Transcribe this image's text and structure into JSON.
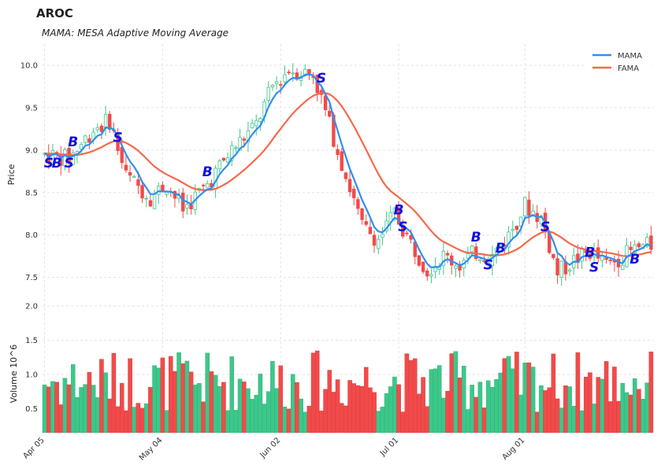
{
  "title": "AROC",
  "subtitle": "MAMA: MESA Adaptive Moving Average",
  "chart_data": {
    "type": "candlestick",
    "price_panel": {
      "ylabel": "Price",
      "ylim": [
        7.2,
        10.25
      ],
      "yticks": [
        7.5,
        8.0,
        8.5,
        9.0,
        9.5,
        10.0
      ],
      "ytick_labels": [
        "7.5",
        "8.0",
        "8.5",
        "9.0",
        "9.5",
        "10.0"
      ],
      "grid": true,
      "legend_position": "top-right",
      "series": [
        {
          "name": "MAMA",
          "color": "#2f8ff0",
          "x": [
            0,
            3,
            5,
            8,
            11,
            14,
            17,
            20,
            23,
            26,
            29,
            32,
            35,
            38,
            41,
            44,
            47,
            50,
            53,
            56,
            59,
            62,
            65,
            68,
            71,
            74,
            77,
            80,
            83,
            86,
            89,
            92,
            95,
            98,
            101,
            104,
            107,
            110,
            113,
            116,
            119,
            122,
            125,
            128,
            131,
            134,
            137,
            140,
            143,
            146,
            149,
            152,
            155,
            158,
            161,
            164,
            167,
            170,
            173,
            176,
            179,
            182,
            185,
            188,
            191,
            194,
            197,
            200,
            203,
            206,
            209,
            212,
            215,
            218,
            221,
            224,
            227,
            230,
            233,
            236,
            239,
            242,
            245,
            248,
            251,
            254,
            257,
            260,
            263,
            266,
            269,
            272,
            275,
            278,
            281,
            284,
            287,
            290,
            293,
            296,
            299,
            302,
            305,
            308,
            311,
            314,
            317,
            320,
            323,
            326,
            329,
            332,
            335,
            338,
            341,
            344,
            347,
            350,
            353,
            356,
            359,
            362,
            365,
            368,
            371,
            374,
            377,
            380,
            383,
            386,
            389,
            392,
            395,
            398,
            401,
            404,
            407,
            410,
            413,
            416,
            419,
            422,
            425,
            428,
            431,
            434,
            437,
            440,
            443,
            446,
            449,
            452,
            455,
            458,
            461,
            464,
            467,
            470,
            473,
            476,
            479,
            482,
            485,
            488,
            491,
            494,
            497,
            500,
            503,
            506,
            509,
            512,
            515,
            518,
            521,
            524,
            527,
            530,
            533,
            536,
            539,
            542,
            545,
            548
          ],
          "values": []
        },
        {
          "name": "FAMA",
          "color": "#f5694a",
          "values": []
        }
      ]
    },
    "x_tick_labels": [
      "Apr 05",
      "May 04",
      "Jun 02",
      "Jul 01",
      "Aug 01"
    ],
    "x_tick_days": [
      0,
      29,
      58,
      87,
      118
    ],
    "n_days": 150,
    "signals": [
      {
        "label": "S",
        "day": 1,
        "price": 8.85
      },
      {
        "label": "B",
        "day": 3,
        "price": 8.85
      },
      {
        "label": "B",
        "day": 7,
        "price": 9.1
      },
      {
        "label": "S",
        "day": 6,
        "price": 8.85
      },
      {
        "label": "S",
        "day": 18,
        "price": 9.15
      },
      {
        "label": "B",
        "day": 40,
        "price": 8.75
      },
      {
        "label": "S",
        "day": 68,
        "price": 9.85
      },
      {
        "label": "B",
        "day": 87,
        "price": 8.3
      },
      {
        "label": "S",
        "day": 88,
        "price": 8.1
      },
      {
        "label": "B",
        "day": 106,
        "price": 7.98
      },
      {
        "label": "S",
        "day": 109,
        "price": 7.65
      },
      {
        "label": "B",
        "day": 112,
        "price": 7.85
      },
      {
        "label": "S",
        "day": 123,
        "price": 8.1
      },
      {
        "label": "B",
        "day": 134,
        "price": 7.8
      },
      {
        "label": "S",
        "day": 135,
        "price": 7.62
      },
      {
        "label": "B",
        "day": 145,
        "price": 7.72
      }
    ],
    "volume_panel": {
      "ylabel": "Volume",
      "ylabel_exponent": "10^6",
      "ylim": [
        0.15,
        2.0
      ],
      "yticks": [
        0.5,
        1.0,
        1.5,
        2.0
      ],
      "ytick_labels": [
        "0.5",
        "1.0",
        "1.5",
        "2.0"
      ]
    },
    "colors": {
      "up": "#3cc88a",
      "down": "#f24a4a",
      "grid": "#e3e3e3"
    }
  }
}
